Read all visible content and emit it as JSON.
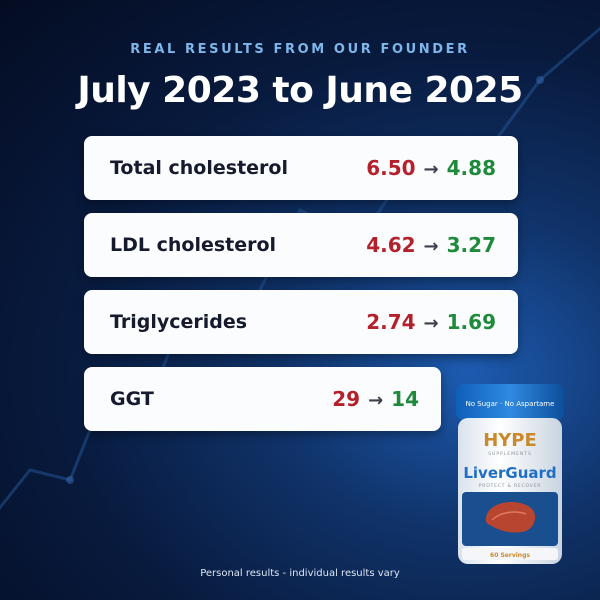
{
  "header": {
    "eyebrow": "REAL RESULTS FROM OUR FOUNDER",
    "title": "July 2023 to June 2025"
  },
  "results": [
    {
      "label": "Total cholesterol",
      "from": "6.50",
      "arrow": "→",
      "to": "4.88"
    },
    {
      "label": "LDL cholesterol",
      "from": "4.62",
      "arrow": "→",
      "to": "3.27"
    },
    {
      "label": "Triglycerides",
      "from": "2.74",
      "arrow": "→",
      "to": "1.69"
    },
    {
      "label": "GGT",
      "from": "29",
      "arrow": "→",
      "to": "14"
    }
  ],
  "product": {
    "brand": "HYPE",
    "brand_sub": "SUPPLEMENTS",
    "name": "LiverGuard",
    "tagline": "PROTECT & RECOVER",
    "band_text": "No Sugar · No Aspartame",
    "servings": "60 Servings"
  },
  "footer": {
    "disclaimer": "Personal results - individual results vary"
  },
  "colors": {
    "background_dark": "#081a3d",
    "background_glow": "#1d5bb0",
    "eyebrow": "#7fb6ea",
    "before_value": "#b3212c",
    "after_value": "#1f8a3c",
    "card": "#fbfcfe"
  }
}
